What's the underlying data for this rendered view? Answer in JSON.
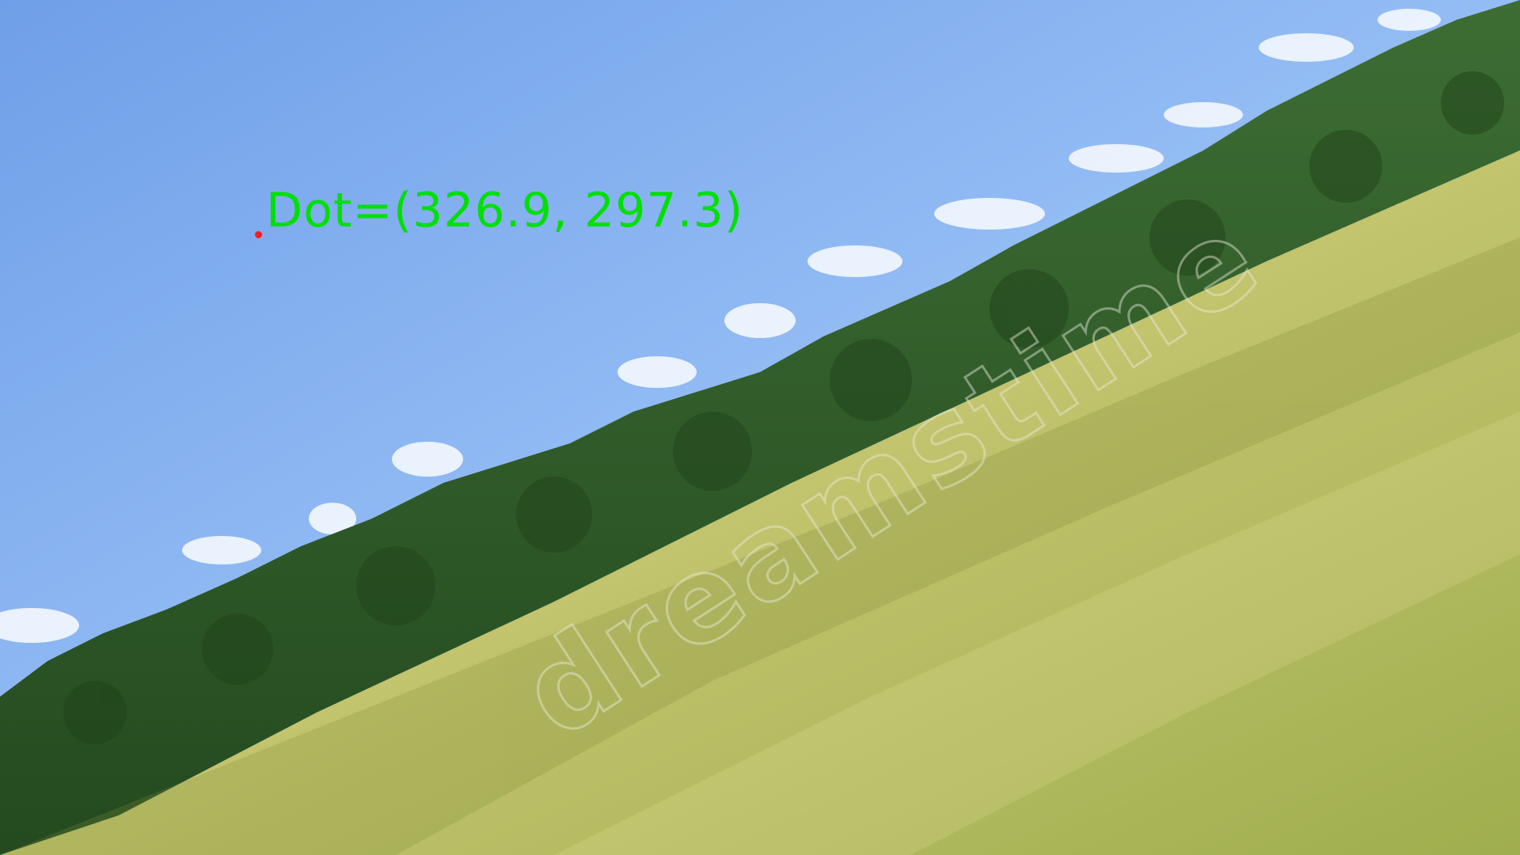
{
  "image": {
    "kind": "tilted landscape photo",
    "sky_color": "#86b4f2",
    "forest_color": "#2f5a2a",
    "meadow_color": "#b9c068"
  },
  "annotation": {
    "label": "Dot=(326.9, 297.3)",
    "text_color": "#00e000",
    "dot_color": "#ff1a1a"
  },
  "watermark": {
    "text": "dreamstime"
  }
}
